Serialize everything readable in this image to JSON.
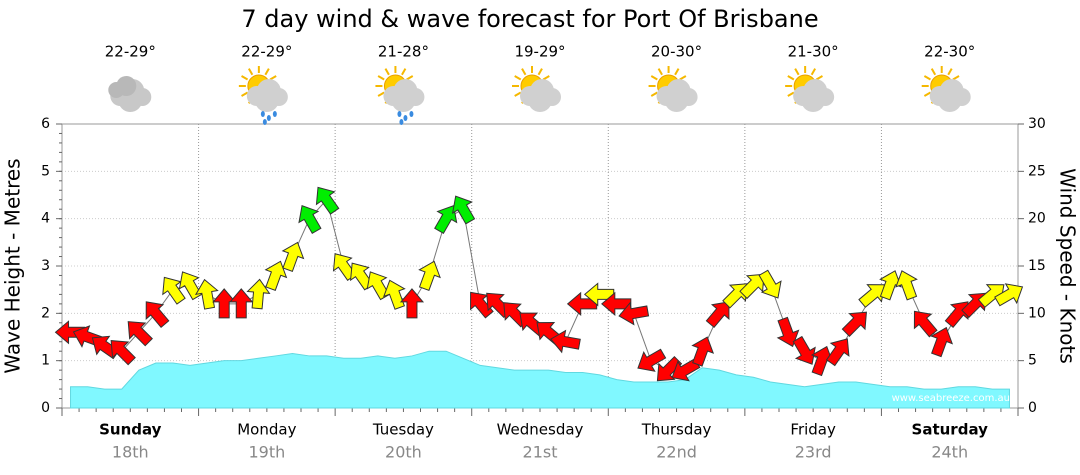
{
  "chart_data": {
    "type": "wind-wave",
    "title": "7 day wind & wave forecast for Port Of Brisbane",
    "ylabel": "Wave Height - Metres",
    "y2label": "Wind Speed - Knots",
    "watermark": "www.seabreeze.com.au",
    "ylim": [
      0,
      6
    ],
    "yticks": [
      0,
      1,
      2,
      3,
      4,
      5,
      6
    ],
    "y2lim": [
      0,
      30
    ],
    "y2ticks": [
      0,
      5,
      10,
      15,
      20,
      25,
      30
    ],
    "grid": true,
    "days": [
      {
        "name": "Sunday",
        "date": "18th",
        "temp": "22-29°",
        "icon": "cloud",
        "bold": true
      },
      {
        "name": "Monday",
        "date": "19th",
        "temp": "22-29°",
        "icon": "sun-rain",
        "bold": false
      },
      {
        "name": "Tuesday",
        "date": "20th",
        "temp": "21-28°",
        "icon": "sun-rain",
        "bold": false
      },
      {
        "name": "Wednesday",
        "date": "21st",
        "temp": "19-29°",
        "icon": "sun-cloud",
        "bold": false
      },
      {
        "name": "Thursday",
        "date": "22nd",
        "temp": "20-30°",
        "icon": "sun-cloud",
        "bold": false
      },
      {
        "name": "Friday",
        "date": "23rd",
        "temp": "21-30°",
        "icon": "sun-cloud",
        "bold": false
      },
      {
        "name": "Saturday",
        "date": "24th",
        "temp": "22-30°",
        "icon": "sun-cloud",
        "bold": true
      }
    ],
    "wave": {
      "color": "#80f8ff",
      "values": [
        0.45,
        0.45,
        0.4,
        0.4,
        0.8,
        0.95,
        0.95,
        0.9,
        0.95,
        1.0,
        1.0,
        1.05,
        1.1,
        1.15,
        1.1,
        1.1,
        1.05,
        1.05,
        1.1,
        1.05,
        1.1,
        1.2,
        1.2,
        1.05,
        0.9,
        0.85,
        0.8,
        0.8,
        0.8,
        0.75,
        0.75,
        0.7,
        0.6,
        0.55,
        0.55,
        0.55,
        0.6,
        0.85,
        0.8,
        0.7,
        0.65,
        0.55,
        0.5,
        0.45,
        0.5,
        0.55,
        0.55,
        0.5,
        0.45,
        0.45,
        0.4,
        0.4,
        0.45,
        0.45,
        0.4,
        0.4
      ]
    },
    "wind": {
      "axis": "y2",
      "values": [
        8,
        7.5,
        6.5,
        6,
        8,
        10,
        12.5,
        13,
        12,
        11,
        11,
        12,
        14,
        16,
        20,
        22,
        15,
        14,
        13,
        12,
        11,
        14,
        20,
        21,
        11,
        11,
        10,
        9,
        8,
        7,
        11,
        12,
        11,
        10,
        5,
        4,
        4,
        6,
        10,
        12,
        13,
        13,
        8,
        6,
        5,
        6,
        9,
        12,
        13,
        13,
        9,
        7,
        10,
        11,
        12,
        12
      ],
      "directions": [
        90,
        110,
        125,
        135,
        135,
        140,
        145,
        150,
        170,
        180,
        180,
        185,
        200,
        200,
        150,
        145,
        145,
        145,
        150,
        160,
        180,
        200,
        210,
        150,
        140,
        135,
        135,
        130,
        130,
        100,
        90,
        90,
        90,
        80,
        60,
        45,
        60,
        200,
        220,
        225,
        225,
        330,
        340,
        330,
        200,
        215,
        225,
        230,
        200,
        160,
        140,
        200,
        220,
        225,
        230,
        240
      ],
      "color_bands": [
        {
          "below": 12,
          "color": "#ff0000"
        },
        {
          "below": 18,
          "color": "#ffff00"
        },
        {
          "color": "#00ee00"
        }
      ]
    }
  }
}
